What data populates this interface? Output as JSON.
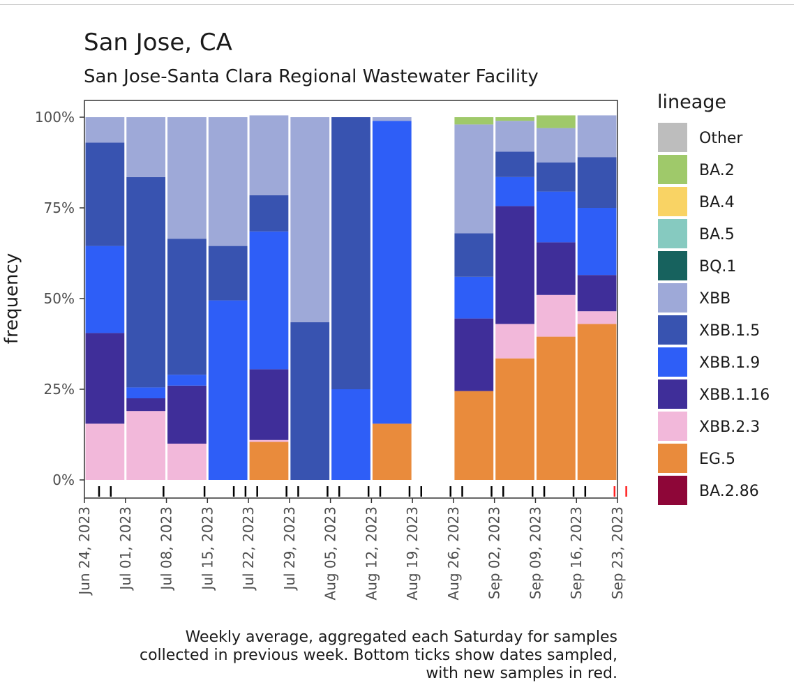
{
  "chart_data": {
    "type": "bar",
    "stacked": true,
    "title": "San Jose, CA",
    "subtitle": "San Jose-Santa Clara Regional Wastewater Facility",
    "ylabel": "frequency",
    "xlabel": "",
    "ylim": [
      0,
      100
    ],
    "yticks": [
      "0%",
      "25%",
      "50%",
      "75%",
      "100%"
    ],
    "x_range": [
      "2023-06-24",
      "2023-09-23"
    ],
    "x_ticks": [
      "Jun 24, 2023",
      "Jul 01, 2023",
      "Jul 08, 2023",
      "Jul 15, 2023",
      "Jul 22, 2023",
      "Jul 29, 2023",
      "Aug 05, 2023",
      "Aug 12, 2023",
      "Aug 19, 2023",
      "Aug 26, 2023",
      "Sep 02, 2023",
      "Sep 09, 2023",
      "Sep 16, 2023",
      "Sep 23, 2023"
    ],
    "categories": [
      "Jun 24 - Jul 01",
      "Jul 01 - Jul 08",
      "Jul 08 - Jul 15",
      "Jul 15 - Jul 22",
      "Jul 22 - Jul 29",
      "Jul 29 - Aug 05",
      "Aug 05 - Aug 12",
      "Aug 12 - Aug 19",
      "Aug 26 - Sep 02",
      "Sep 02 - Sep 09",
      "Sep 09 - Sep 16",
      "Sep 16 - Sep 23"
    ],
    "bar_week_index": [
      0,
      1,
      2,
      3,
      4,
      5,
      6,
      7,
      9,
      10,
      11,
      12
    ],
    "legend_title": "lineage",
    "legend_position": "right",
    "series": [
      {
        "name": "EG.5",
        "color": "#E98B3C",
        "values": [
          0,
          0,
          0,
          0,
          10.5,
          0,
          0,
          15.5,
          24.5,
          33.5,
          39.5,
          43
        ]
      },
      {
        "name": "XBB.2.3",
        "color": "#F2B8DA",
        "values": [
          15.5,
          19,
          10,
          0,
          0.5,
          0,
          0,
          0,
          0,
          9.5,
          11.5,
          3.5
        ]
      },
      {
        "name": "XBB.1.16",
        "color": "#3F2E99",
        "values": [
          25,
          3.5,
          16,
          0,
          19.5,
          0,
          0,
          0,
          20,
          32.5,
          14.5,
          10
        ]
      },
      {
        "name": "XBB.1.9",
        "color": "#2E5EF7",
        "values": [
          24,
          3,
          3,
          49.5,
          38,
          0,
          25,
          83.5,
          11.5,
          8,
          14,
          18.5
        ]
      },
      {
        "name": "XBB.1.5",
        "color": "#3853B0",
        "values": [
          28.5,
          58,
          37.5,
          15,
          10,
          43.5,
          75,
          0,
          12,
          7,
          8,
          14
        ]
      },
      {
        "name": "XBB",
        "color": "#9EA9D8",
        "values": [
          7,
          16.5,
          33.5,
          35.5,
          22,
          56.5,
          0,
          1,
          30,
          8.5,
          9.5,
          11.5
        ]
      },
      {
        "name": "BQ.1",
        "color": "#17625E",
        "values": [
          0,
          0,
          0,
          0,
          0,
          0,
          0,
          0,
          0,
          0,
          0,
          0
        ]
      },
      {
        "name": "BA.5",
        "color": "#86CAC0",
        "values": [
          0,
          0,
          0,
          0,
          0,
          0,
          0,
          0,
          0,
          0,
          0,
          0
        ]
      },
      {
        "name": "BA.4",
        "color": "#F9D364",
        "values": [
          0,
          0,
          0,
          0,
          0,
          0,
          0,
          0,
          0,
          0,
          0,
          0
        ]
      },
      {
        "name": "BA.2",
        "color": "#9FC96A",
        "values": [
          0,
          0,
          0,
          0,
          0,
          0,
          0,
          0,
          2,
          1,
          3.5,
          0
        ]
      },
      {
        "name": "Other",
        "color": "#BDBDBD",
        "values": [
          0,
          0,
          0,
          0,
          0,
          0,
          0,
          0,
          0,
          0,
          0,
          0
        ]
      },
      {
        "name": "BA.2.86",
        "color": "#8E0638",
        "values": [
          0,
          0,
          0,
          0,
          0,
          0,
          0,
          0,
          0,
          0,
          0,
          0
        ]
      }
    ],
    "legend": [
      {
        "name": "Other",
        "color": "#BDBDBD"
      },
      {
        "name": "BA.2",
        "color": "#9FC96A"
      },
      {
        "name": "BA.4",
        "color": "#F9D364"
      },
      {
        "name": "BA.5",
        "color": "#86CAC0"
      },
      {
        "name": "BQ.1",
        "color": "#17625E"
      },
      {
        "name": "XBB",
        "color": "#9EA9D8"
      },
      {
        "name": "XBB.1.5",
        "color": "#3853B0"
      },
      {
        "name": "XBB.1.9",
        "color": "#2E5EF7"
      },
      {
        "name": "XBB.1.16",
        "color": "#3F2E99"
      },
      {
        "name": "XBB.2.3",
        "color": "#F2B8DA"
      },
      {
        "name": "EG.5",
        "color": "#E98B3C"
      },
      {
        "name": "BA.2.86",
        "color": "#8E0638"
      }
    ],
    "sample_days": [
      2.5,
      4.5,
      13.5,
      20.5,
      25.5,
      27.5,
      29.5,
      34.5,
      36.5,
      41.5,
      43.5,
      48.5,
      50.5,
      55.5,
      57.5,
      62.5,
      64.5,
      69.5,
      71.5,
      76.5,
      78.5,
      83.5,
      85.5
    ],
    "new_sample_days": [
      90.5,
      92.5
    ],
    "caption": [
      "Weekly average, aggregated each Saturday for samples",
      "collected in previous week. Bottom ticks show dates sampled,",
      "with new samples in red."
    ],
    "colors": {
      "sample_tick": "#000000",
      "new_sample_tick": "#FF2020"
    }
  }
}
